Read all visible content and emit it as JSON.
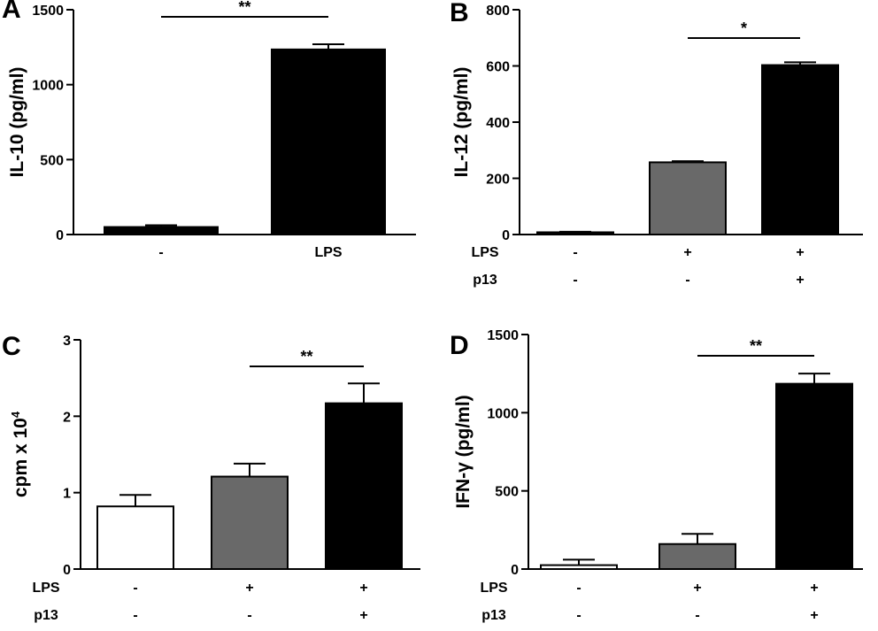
{
  "figure": {
    "panels": [
      {
        "letter": "A",
        "ylabel": "IL-10 (pg/ml)",
        "conditions": [
          {
            "label": "",
            "values": [
              "-",
              "LPS"
            ]
          }
        ],
        "significance": [
          {
            "from": 0,
            "to": 1,
            "label": "**"
          }
        ]
      },
      {
        "letter": "B",
        "ylabel": "IL-12 (pg/ml)",
        "conditions": [
          {
            "label": "LPS",
            "values": [
              "-",
              "+",
              "+"
            ]
          },
          {
            "label": "p13",
            "values": [
              "-",
              "-",
              "+"
            ]
          }
        ],
        "significance": [
          {
            "from": 1,
            "to": 2,
            "label": "*"
          }
        ]
      },
      {
        "letter": "C",
        "ylabel": "cpm x 10",
        "ylabel_sup": "4",
        "conditions": [
          {
            "label": "LPS",
            "values": [
              "-",
              "+",
              "+"
            ]
          },
          {
            "label": "p13",
            "values": [
              "-",
              "-",
              "+"
            ]
          }
        ],
        "significance": [
          {
            "from": 1,
            "to": 2,
            "label": "**"
          }
        ]
      },
      {
        "letter": "D",
        "ylabel": "IFN-γ (pg/ml)",
        "conditions": [
          {
            "label": "LPS",
            "values": [
              "-",
              "+",
              "+"
            ]
          },
          {
            "label": "p13",
            "values": [
              "-",
              "-",
              "+"
            ]
          }
        ],
        "significance": [
          {
            "from": 1,
            "to": 2,
            "label": "**"
          }
        ]
      }
    ]
  },
  "chart_data": [
    {
      "type": "bar",
      "title": "",
      "ylabel": "IL-10 (pg/ml)",
      "categories": [
        "-",
        "LPS"
      ],
      "values": [
        50,
        1235
      ],
      "errors": [
        12,
        35
      ],
      "colors": [
        "#000000",
        "#000000"
      ],
      "ylim": [
        0,
        1500
      ],
      "yticks": [
        0,
        500,
        1000,
        1500
      ]
    },
    {
      "type": "bar",
      "title": "",
      "ylabel": "IL-12 (pg/ml)",
      "categories": [
        "-/-",
        "+/-",
        "+/+"
      ],
      "values": [
        8,
        257,
        603
      ],
      "errors": [
        2,
        4,
        10
      ],
      "colors": [
        "#000000",
        "#696969",
        "#000000"
      ],
      "ylim": [
        0,
        800
      ],
      "yticks": [
        0,
        200,
        400,
        600,
        800
      ]
    },
    {
      "type": "bar",
      "title": "",
      "ylabel": "cpm x 10^4",
      "categories": [
        "-/-",
        "+/-",
        "+/+"
      ],
      "values": [
        0.82,
        1.21,
        2.17
      ],
      "errors": [
        0.15,
        0.17,
        0.26
      ],
      "colors": [
        "#ffffff",
        "#696969",
        "#000000"
      ],
      "ylim": [
        0,
        3
      ],
      "yticks": [
        0,
        1,
        2,
        3
      ]
    },
    {
      "type": "bar",
      "title": "",
      "ylabel": "IFN-γ (pg/ml)",
      "categories": [
        "-/-",
        "+/-",
        "+/+"
      ],
      "values": [
        25,
        160,
        1185
      ],
      "errors": [
        35,
        65,
        65
      ],
      "colors": [
        "#ffffff",
        "#696969",
        "#000000"
      ],
      "ylim": [
        0,
        1500
      ],
      "yticks": [
        0,
        500,
        1000,
        1500
      ]
    }
  ]
}
